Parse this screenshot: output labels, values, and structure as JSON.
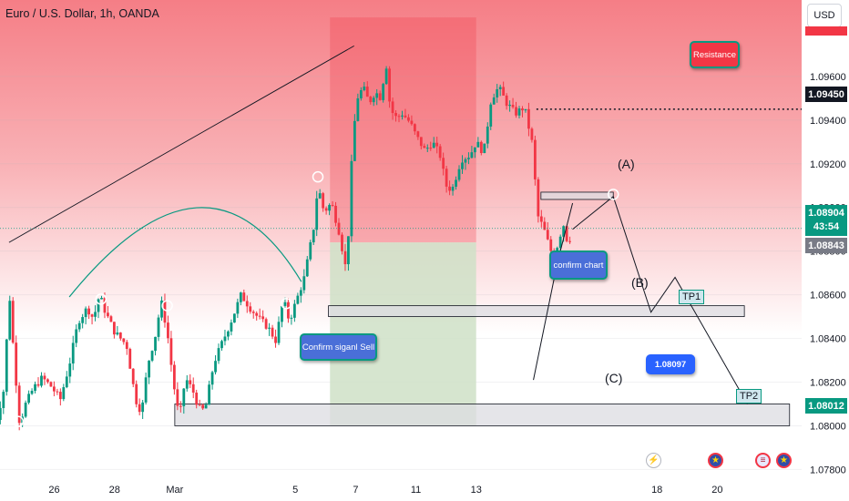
{
  "header": {
    "title": "Euro / U.S. Dollar, 1h, OANDA",
    "currency_button": "USD"
  },
  "annotations": {
    "resistance": "Resistance",
    "confirm_chart": "confirm chart",
    "confirm_signal_sell": "Confirm siganl Sell",
    "target_price": "1.08097",
    "tp1": "TP1",
    "tp2": "TP2",
    "wave_a": "(A)",
    "wave_b": "(B)",
    "wave_c": "(C)"
  },
  "price_labels": {
    "resistance": "1.09450",
    "current": "1.08904",
    "countdown": "43:54",
    "previous": "1.08843",
    "tp2": "1.08012"
  },
  "events": {
    "bolt": "⚡",
    "eu": "★",
    "us1": "≡",
    "us2": "★"
  },
  "colors": {
    "bullish": "#089981",
    "bearish": "#f23645",
    "zone_red": "#f7a8ae",
    "zone_green": "#cfe1c7",
    "callout_blue": "#4a6fd8",
    "accent_blue": "#2962ff"
  },
  "chart_data": {
    "type": "candlestick",
    "symbol": "Euro / U.S. Dollar",
    "timeframe": "1h",
    "source": "OANDA",
    "ylim": [
      1.0776,
      1.0995
    ],
    "y_ticks": [
      1.078,
      1.08,
      1.082,
      1.084,
      1.086,
      1.088,
      1.09,
      1.092,
      1.094,
      1.096
    ],
    "y_tick_labels": [
      "1.07800",
      "1.08000",
      "1.08200",
      "1.08400",
      "1.08600",
      "1.08800",
      "1.09000",
      "1.09200",
      "1.09400",
      "1.09600"
    ],
    "x_tick_labels": [
      {
        "label": "26",
        "day": 1
      },
      {
        "label": "28",
        "day": 3
      },
      {
        "label": "Mar",
        "day": 5
      },
      {
        "label": "5",
        "day": 9
      },
      {
        "label": "7",
        "day": 11
      },
      {
        "label": "11",
        "day": 13
      },
      {
        "label": "13",
        "day": 15
      },
      {
        "label": "18",
        "day": 21
      },
      {
        "label": "20",
        "day": 23
      }
    ],
    "x_range_days": [
      -0.8,
      25.8
    ],
    "price_path": [
      [
        -1.0,
        1.0798
      ],
      [
        -0.85,
        1.0806
      ],
      [
        -0.65,
        1.0818
      ],
      [
        -0.5,
        1.0863
      ],
      [
        -0.35,
        1.0834
      ],
      [
        -0.15,
        1.0801
      ],
      [
        0.05,
        1.081
      ],
      [
        0.3,
        1.0817
      ],
      [
        0.6,
        1.0822
      ],
      [
        0.9,
        1.0818
      ],
      [
        1.2,
        1.0812
      ],
      [
        1.5,
        1.0828
      ],
      [
        1.8,
        1.0848
      ],
      [
        2.1,
        1.0854
      ],
      [
        2.3,
        1.0849
      ],
      [
        2.5,
        1.086
      ],
      [
        2.7,
        1.0852
      ],
      [
        3.0,
        1.0843
      ],
      [
        3.4,
        1.0837
      ],
      [
        3.7,
        1.0812
      ],
      [
        3.9,
        1.0806
      ],
      [
        4.1,
        1.0828
      ],
      [
        4.35,
        1.0841
      ],
      [
        4.55,
        1.0857
      ],
      [
        4.75,
        1.0843
      ],
      [
        4.95,
        1.082
      ],
      [
        5.15,
        1.0803
      ],
      [
        5.35,
        1.0822
      ],
      [
        5.6,
        1.0816
      ],
      [
        5.8,
        1.0808
      ],
      [
        6.0,
        1.0807
      ],
      [
        6.3,
        1.0829
      ],
      [
        6.6,
        1.0839
      ],
      [
        6.9,
        1.0849
      ],
      [
        7.2,
        1.086
      ],
      [
        7.5,
        1.0854
      ],
      [
        7.8,
        1.0849
      ],
      [
        8.1,
        1.0845
      ],
      [
        8.35,
        1.0839
      ],
      [
        8.6,
        1.0858
      ],
      [
        8.8,
        1.0848
      ],
      [
        9.0,
        1.0856
      ],
      [
        9.3,
        1.0868
      ],
      [
        9.6,
        1.089
      ],
      [
        9.75,
        1.091
      ],
      [
        9.95,
        1.0898
      ],
      [
        10.2,
        1.0902
      ],
      [
        10.45,
        1.0889
      ],
      [
        10.7,
        1.087
      ],
      [
        10.9,
        1.093
      ],
      [
        11.05,
        1.095
      ],
      [
        11.25,
        1.0955
      ],
      [
        11.45,
        1.0948
      ],
      [
        11.65,
        1.0953
      ],
      [
        11.85,
        1.095
      ],
      [
        12.0,
        1.0968
      ],
      [
        12.15,
        1.0945
      ],
      [
        12.35,
        1.0941
      ],
      [
        12.55,
        1.0943
      ],
      [
        12.8,
        1.0939
      ],
      [
        13.0,
        1.0933
      ],
      [
        13.3,
        1.0926
      ],
      [
        13.55,
        1.093
      ],
      [
        13.8,
        1.0924
      ],
      [
        14.0,
        1.091
      ],
      [
        14.2,
        1.0908
      ],
      [
        14.5,
        1.0922
      ],
      [
        14.8,
        1.0924
      ],
      [
        15.0,
        1.093
      ],
      [
        15.25,
        1.0925
      ],
      [
        15.5,
        1.095
      ],
      [
        15.75,
        1.0955
      ],
      [
        16.0,
        1.0948
      ],
      [
        16.3,
        1.0943
      ],
      [
        16.6,
        1.0946
      ],
      [
        16.85,
        1.093
      ],
      [
        17.05,
        1.0896
      ],
      [
        17.25,
        1.089
      ],
      [
        17.45,
        1.0881
      ],
      [
        17.6,
        1.0877
      ],
      [
        17.75,
        1.0886
      ],
      [
        17.9,
        1.0892
      ],
      [
        18.05,
        1.0883
      ],
      [
        18.2,
        1.089
      ]
    ],
    "resistance_level": 1.0945,
    "current_price": 1.08904,
    "previous_close": 1.08843,
    "target_level": 1.08097,
    "tp2_level": 1.08012,
    "zones": [
      {
        "name": "entry-box",
        "x": [
          17.15,
          19.55
        ],
        "y": [
          1.0904,
          1.0907
        ]
      },
      {
        "name": "tp1-box",
        "x": [
          10.1,
          23.9
        ],
        "y": [
          1.085,
          1.0855
        ]
      },
      {
        "name": "tp2-box",
        "x": [
          5.0,
          25.4
        ],
        "y": [
          1.08,
          1.081
        ]
      }
    ],
    "risk_reward": {
      "x": [
        10.15,
        15.0
      ],
      "stop_top": 1.0987,
      "entry": 1.0884,
      "target": 1.08
    },
    "trend_line": [
      [
        -0.5,
        1.0884
      ],
      [
        10.95,
        1.0974
      ]
    ],
    "arc_line": [
      [
        1.5,
        1.0859
      ],
      [
        6.1,
        1.0883
      ],
      [
        9.2,
        1.0866
      ]
    ],
    "projection": [
      [
        18.2,
        1.089
      ],
      [
        19.55,
        1.0905
      ],
      [
        20.8,
        1.0852
      ],
      [
        21.6,
        1.0868
      ],
      [
        24.0,
        1.081
      ]
    ],
    "projection_alt": [
      [
        18.2,
        1.0902
      ],
      [
        17.7,
        1.0875
      ],
      [
        16.9,
        1.0821
      ]
    ],
    "markers": [
      [
        -0.2,
        1.0802
      ],
      [
        2.55,
        1.0858
      ],
      [
        4.75,
        1.0855
      ],
      [
        8.7,
        1.0856
      ],
      [
        9.75,
        1.0914
      ],
      [
        19.55,
        1.0906
      ]
    ]
  }
}
